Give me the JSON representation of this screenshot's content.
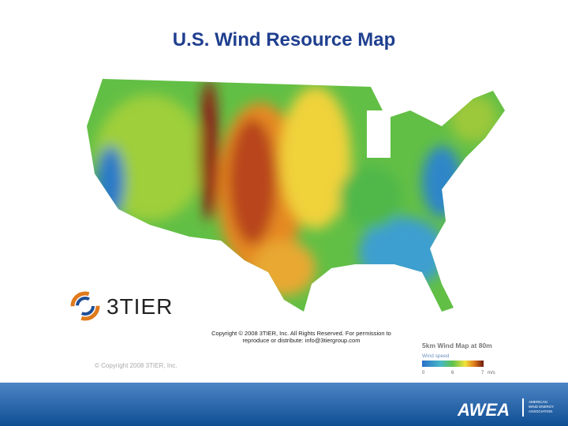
{
  "title": "U.S. Wind Resource Map",
  "map": {
    "logo": "3TIER",
    "copyright_notice": [
      "Copyright © 2008 3TIER, Inc. All Rights Reserved. For permission to",
      "reproduce or distribute: info@3tiergroup.com"
    ],
    "watermark": "© Copyright 2008 3TIER, Inc.",
    "legend": {
      "title": "5km Wind Map at 80m",
      "label": "Wind speed",
      "ticks": [
        "0",
        "6",
        "7"
      ],
      "unit": "m/s"
    }
  },
  "footer": {
    "logo": "AWEA",
    "organization": [
      "AMERICAN",
      "WIND ENERGY",
      "ASSOCIATION"
    ]
  }
}
